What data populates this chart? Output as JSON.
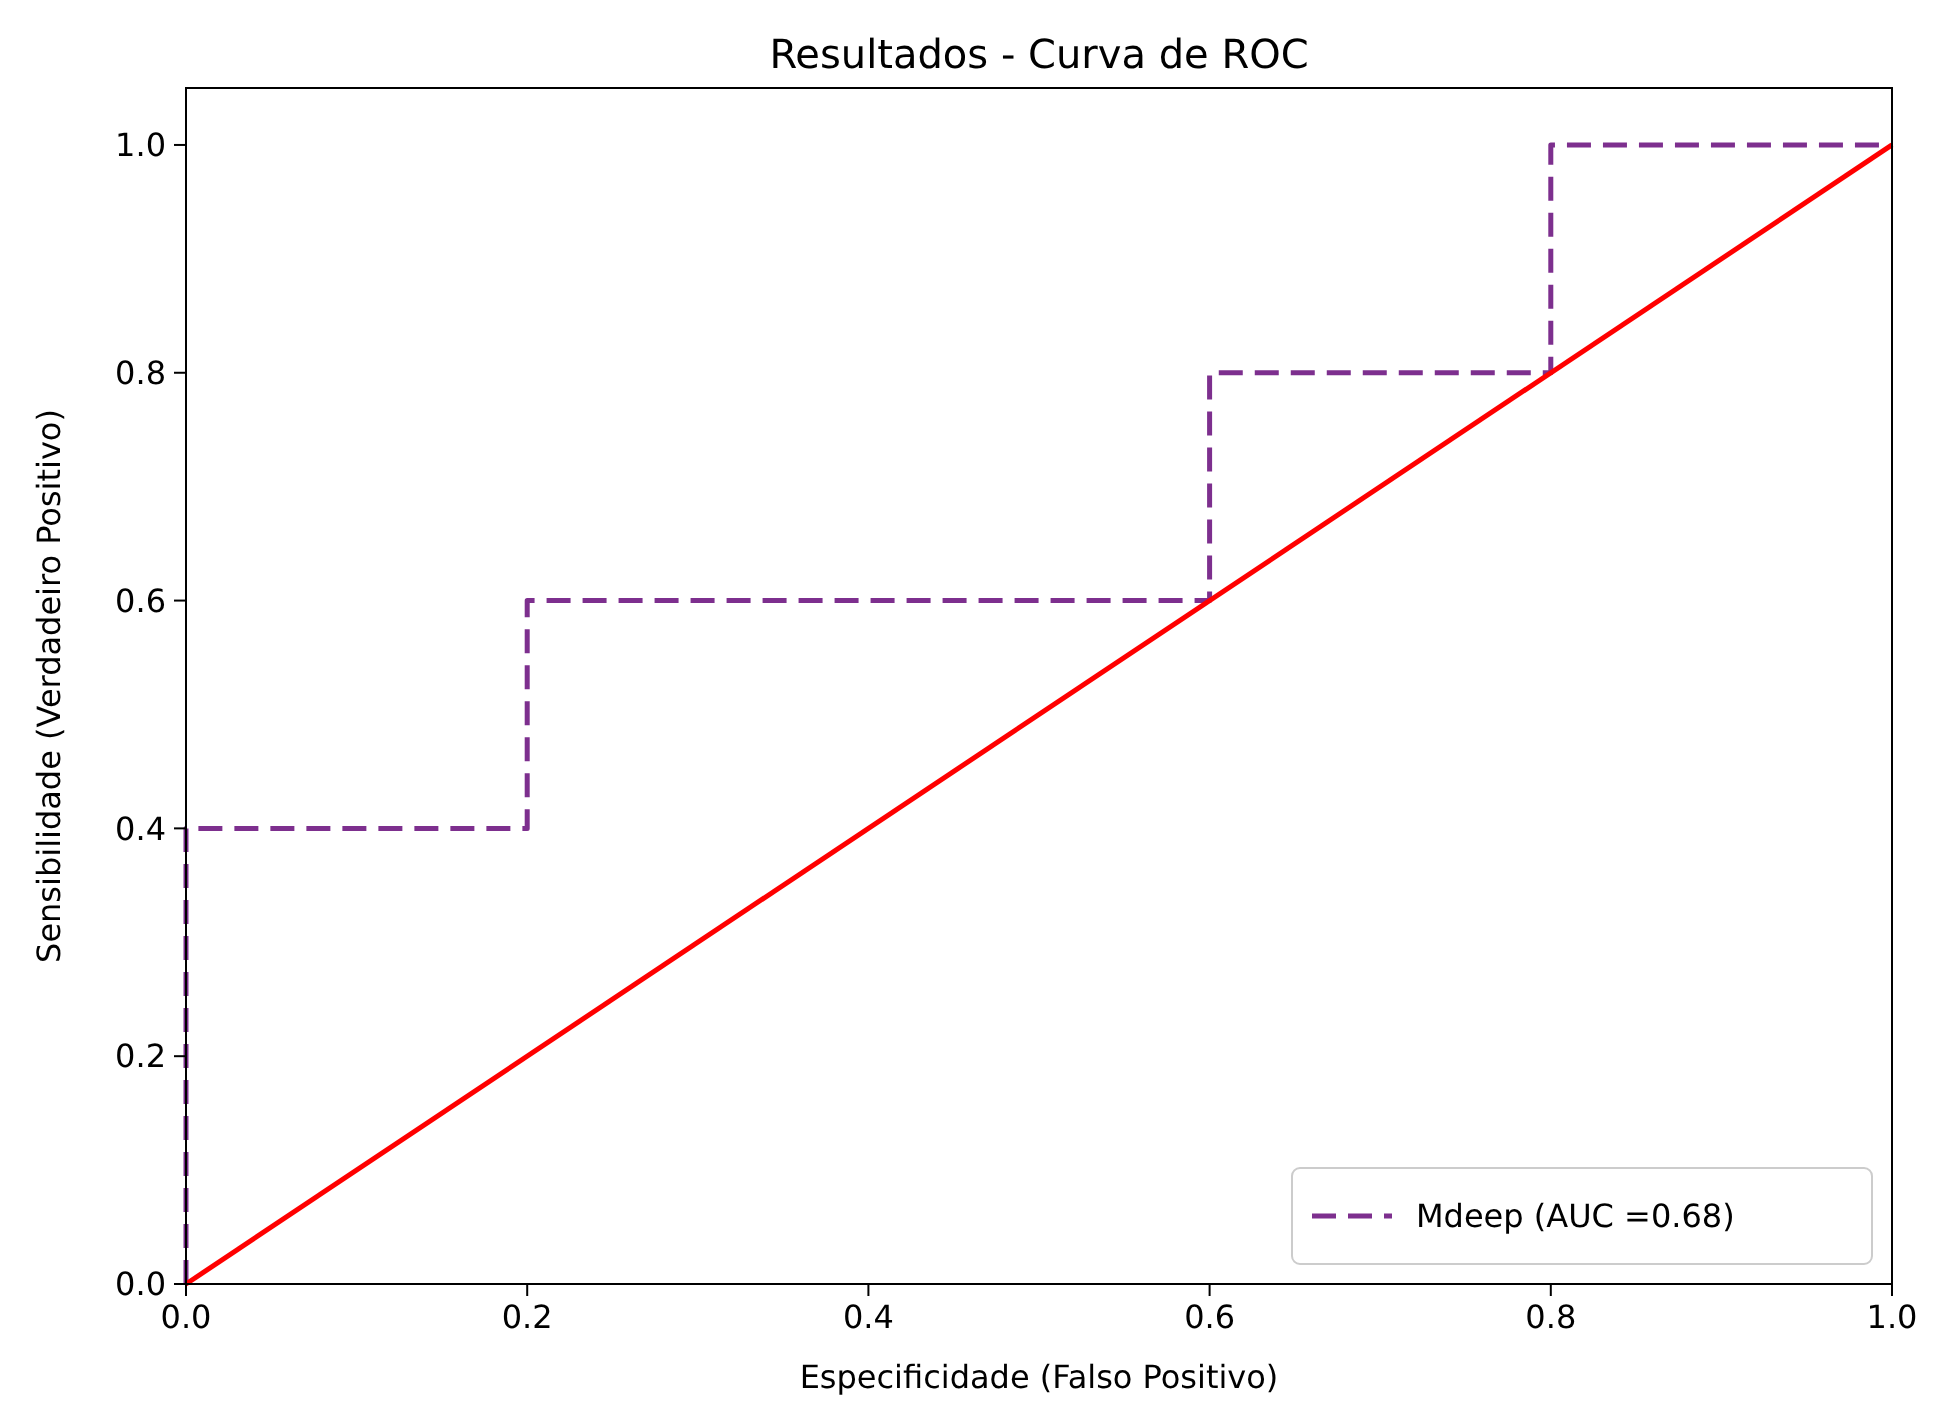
{
  "chart_data": {
    "type": "line",
    "title": "Resultados - Curva de ROC",
    "xlabel": "Especificidade (Falso Positivo)",
    "ylabel": "Sensibilidade (Verdadeiro Positivo)",
    "xlim": [
      0,
      1
    ],
    "ylim": [
      0,
      1.05
    ],
    "xticks": [
      {
        "value": 0,
        "label": "0.0"
      },
      {
        "value": 0.2,
        "label": "0.2"
      },
      {
        "value": 0.4,
        "label": "0.4"
      },
      {
        "value": 0.6,
        "label": "0.6"
      },
      {
        "value": 0.8,
        "label": "0.8"
      },
      {
        "value": 1,
        "label": "1.0"
      }
    ],
    "yticks": [
      {
        "value": 0,
        "label": "0.0"
      },
      {
        "value": 0.2,
        "label": "0.2"
      },
      {
        "value": 0.4,
        "label": "0.4"
      },
      {
        "value": 0.6,
        "label": "0.6"
      },
      {
        "value": 0.8,
        "label": "0.8"
      },
      {
        "value": 1,
        "label": "1.0"
      }
    ],
    "series": [
      {
        "name": "Mdeep (AUC =0.68)",
        "color": "#7d2f8e",
        "line_style": "dashed",
        "x": [
          0,
          0,
          0.2,
          0.2,
          0.6,
          0.6,
          0.8,
          0.8,
          1
        ],
        "values": [
          0,
          0.4,
          0.4,
          0.6,
          0.6,
          0.8,
          0.8,
          1,
          1
        ]
      },
      {
        "color": "#ff0000",
        "line_style": "solid",
        "x": [
          0,
          1
        ],
        "values": [
          0,
          1
        ]
      }
    ],
    "legend": "bottom right",
    "grid": false
  }
}
